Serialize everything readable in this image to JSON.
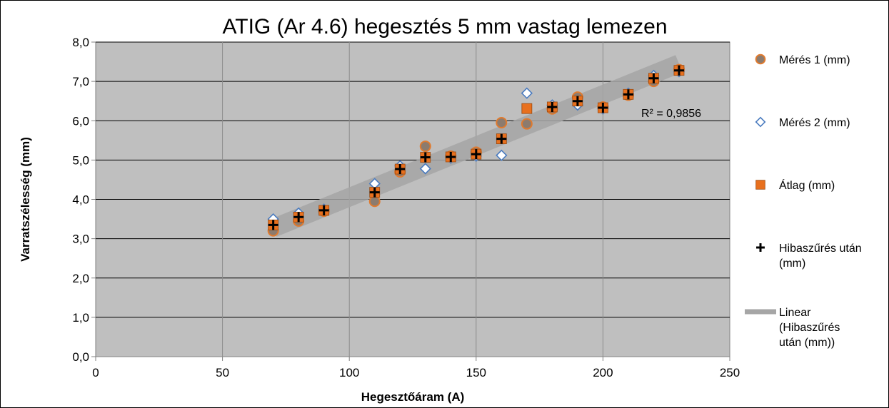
{
  "chart_data": {
    "type": "scatter",
    "title": "ATIG (Ar 4.6) hegesztés 5 mm vastag lemezen",
    "xlabel": "Hegesztőáram (A)",
    "ylabel": "Varratszélesség (mm)",
    "xlim": [
      0,
      250
    ],
    "ylim": [
      0,
      8
    ],
    "x_ticks": [
      "0",
      "50",
      "100",
      "150",
      "200",
      "250"
    ],
    "y_ticks": [
      "0,0",
      "1,0",
      "2,0",
      "3,0",
      "4,0",
      "5,0",
      "6,0",
      "7,0",
      "8,0"
    ],
    "grid": true,
    "legend_position": "right",
    "annotation": "R² = 0,9856",
    "colors": {
      "plot_bg": "#bfbfbf",
      "grid": "#000000",
      "meres1_fill": "#8c7b6e",
      "meres1_stroke": "#e07a2e",
      "meres2_stroke": "#4a7bbf",
      "atlag": "#e8701e",
      "hiba": "#000000",
      "trend": "#a6a6a6"
    },
    "series": [
      {
        "name": "Mérés 1 (mm)",
        "marker": "circle",
        "points": [
          [
            70,
            3.2
          ],
          [
            80,
            3.45
          ],
          [
            90,
            3.7
          ],
          [
            110,
            3.95
          ],
          [
            120,
            4.7
          ],
          [
            130,
            5.35
          ],
          [
            140,
            5.1
          ],
          [
            150,
            5.2
          ],
          [
            160,
            5.95
          ],
          [
            170,
            5.92
          ],
          [
            180,
            6.3
          ],
          [
            190,
            6.6
          ],
          [
            200,
            6.35
          ],
          [
            210,
            6.65
          ],
          [
            220,
            7.0
          ],
          [
            230,
            7.3
          ]
        ]
      },
      {
        "name": "Mérés 2 (mm)",
        "marker": "diamond",
        "points": [
          [
            70,
            3.5
          ],
          [
            80,
            3.65
          ],
          [
            90,
            3.75
          ],
          [
            110,
            4.4
          ],
          [
            120,
            4.85
          ],
          [
            130,
            4.78
          ],
          [
            140,
            5.05
          ],
          [
            150,
            5.1
          ],
          [
            160,
            5.12
          ],
          [
            170,
            6.7
          ],
          [
            180,
            6.4
          ],
          [
            190,
            6.4
          ],
          [
            200,
            6.3
          ],
          [
            210,
            6.7
          ],
          [
            220,
            7.15
          ],
          [
            230,
            7.25
          ]
        ]
      },
      {
        "name": "Átlag (mm)",
        "marker": "square",
        "points": [
          [
            70,
            3.35
          ],
          [
            80,
            3.55
          ],
          [
            90,
            3.72
          ],
          [
            110,
            4.18
          ],
          [
            120,
            4.77
          ],
          [
            130,
            5.07
          ],
          [
            140,
            5.08
          ],
          [
            150,
            5.15
          ],
          [
            160,
            5.54
          ],
          [
            170,
            6.31
          ],
          [
            180,
            6.35
          ],
          [
            190,
            6.5
          ],
          [
            200,
            6.33
          ],
          [
            210,
            6.67
          ],
          [
            220,
            7.08
          ],
          [
            230,
            7.28
          ]
        ]
      },
      {
        "name": "Hibaszűrés után (mm)",
        "marker": "plus",
        "points": [
          [
            70,
            3.35
          ],
          [
            80,
            3.55
          ],
          [
            90,
            3.72
          ],
          [
            110,
            4.18
          ],
          [
            120,
            4.77
          ],
          [
            130,
            5.07
          ],
          [
            140,
            5.08
          ],
          [
            150,
            5.15
          ],
          [
            160,
            5.54
          ],
          [
            180,
            6.35
          ],
          [
            190,
            6.5
          ],
          [
            200,
            6.33
          ],
          [
            210,
            6.67
          ],
          [
            220,
            7.08
          ],
          [
            230,
            7.28
          ]
        ]
      },
      {
        "name": "Linear (Hibaszűrés után (mm))",
        "marker": "line",
        "points": [
          [
            70,
            3.27
          ],
          [
            230,
            7.45
          ]
        ]
      }
    ]
  },
  "legend": {
    "items": [
      {
        "lines": [
          "Mérés 1 (mm)"
        ]
      },
      {
        "lines": [
          "Mérés 2 (mm)"
        ]
      },
      {
        "lines": [
          "Átlag (mm)"
        ]
      },
      {
        "lines": [
          "Hibaszűrés után",
          "(mm)"
        ]
      },
      {
        "lines": [
          "Linear",
          "(Hibaszűrés",
          "után (mm))"
        ]
      }
    ]
  }
}
